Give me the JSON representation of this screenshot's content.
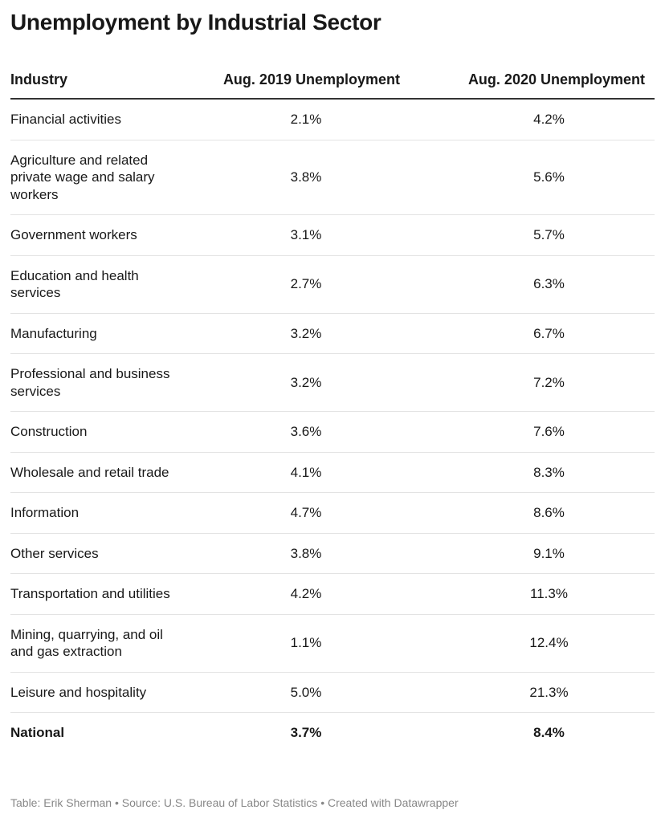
{
  "title": "Unemployment by Industrial Sector",
  "table": {
    "header": [
      "Industry",
      "Aug. 2019 Unemployment",
      "Aug. 2020 Unemployment"
    ],
    "rows": [
      [
        "Financial activities",
        "2.1%",
        "4.2%"
      ],
      [
        "Agriculture and related private wage and salary workers",
        "3.8%",
        "5.6%"
      ],
      [
        "Government workers",
        "3.1%",
        "5.7%"
      ],
      [
        "Education and health services",
        "2.7%",
        "6.3%"
      ],
      [
        "Manufacturing",
        "3.2%",
        "6.7%"
      ],
      [
        "Professional and business services",
        "3.2%",
        "7.2%"
      ],
      [
        "Construction",
        "3.6%",
        "7.6%"
      ],
      [
        "Wholesale and retail trade",
        "4.1%",
        "8.3%"
      ],
      [
        "Information",
        "4.7%",
        "8.6%"
      ],
      [
        "Other services",
        "3.8%",
        "9.1%"
      ],
      [
        "Transportation and utilities",
        "4.2%",
        "11.3%"
      ],
      [
        "Mining, quarrying, and oil and gas extraction",
        "1.1%",
        "12.4%"
      ],
      [
        "Leisure and hospitality",
        "5.0%",
        "21.3%"
      ],
      [
        "National",
        "3.7%",
        "8.4%"
      ]
    ]
  },
  "footer": "Table: Erik Sherman • Source: U.S. Bureau of Labor Statistics • Created with Datawrapper"
}
